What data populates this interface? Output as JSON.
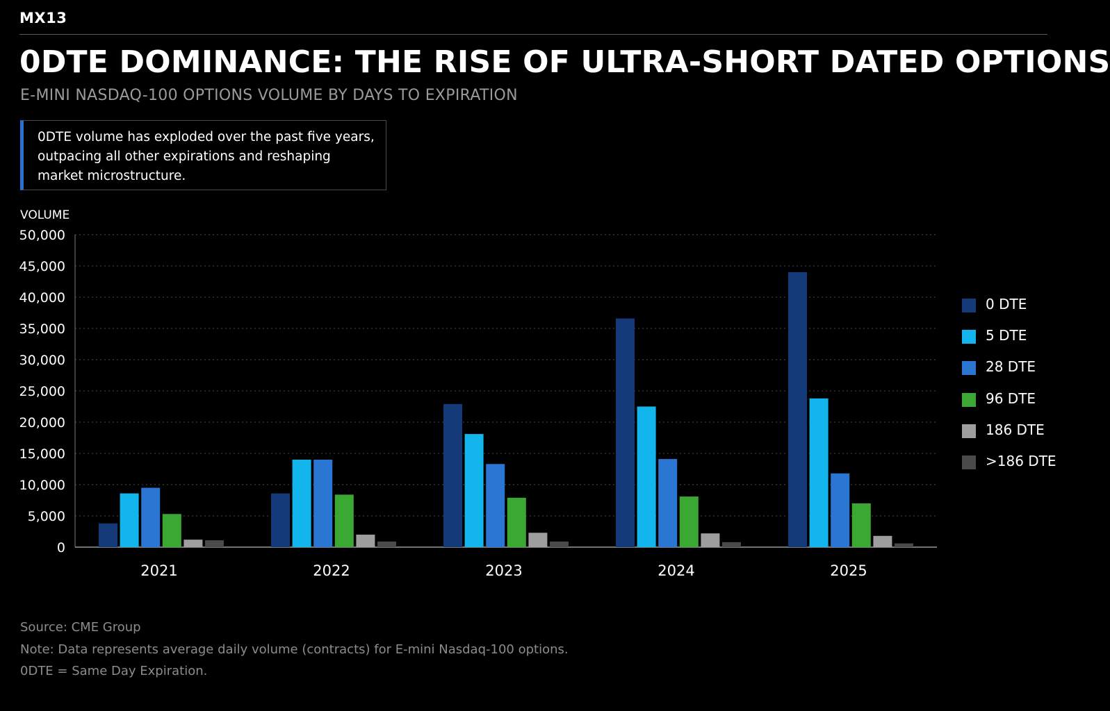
{
  "header": {
    "brand": "MX13",
    "title": "0DTE DOMINANCE: THE RISE OF ULTRA-SHORT DATED OPTIONS",
    "subtitle": "E-MINI NASDAQ-100 OPTIONS VOLUME BY DAYS TO EXPIRATION"
  },
  "callout": {
    "text": "0DTE volume has exploded over the past five years, outpacing all other expirations and reshaping market microstructure.",
    "accent_color": "#2a6fd6"
  },
  "footer": {
    "source": "Source: CME Group",
    "note": "Note: Data represents average daily volume (contracts) for E-mini Nasdaq-100 options.",
    "definition": "0DTE = Same Day Expiration."
  },
  "chart_data": {
    "type": "bar",
    "title": "0DTE DOMINANCE: THE RISE OF ULTRA-SHORT DATED OPTIONS",
    "subtitle": "E-MINI NASDAQ-100 OPTIONS VOLUME BY DAYS TO EXPIRATION",
    "ylabel": "VOLUME",
    "xlabel": "",
    "ylim": [
      0,
      50000
    ],
    "yticks": [
      0,
      5000,
      10000,
      15000,
      20000,
      25000,
      30000,
      35000,
      40000,
      45000,
      50000
    ],
    "ytick_labels": [
      "0",
      "5,000",
      "10,000",
      "15,000",
      "20,000",
      "25,000",
      "30,000",
      "35,000",
      "40,000",
      "45,000",
      "50,000"
    ],
    "grid": true,
    "legend_position": "right",
    "categories": [
      "2021",
      "2022",
      "2023",
      "2024",
      "2025"
    ],
    "series": [
      {
        "name": "0 DTE",
        "color": "#143a7a",
        "values": [
          3800,
          8600,
          22900,
          36600,
          44000
        ]
      },
      {
        "name": "5 DTE",
        "color": "#12b6ec",
        "values": [
          8600,
          14000,
          18100,
          22500,
          23800
        ]
      },
      {
        "name": "28 DTE",
        "color": "#2b76d2",
        "values": [
          9500,
          14000,
          13300,
          14100,
          11800
        ]
      },
      {
        "name": "96 DTE",
        "color": "#3aa832",
        "values": [
          5300,
          8400,
          7900,
          8100,
          7000
        ]
      },
      {
        "name": "186 DTE",
        "color": "#9e9e9e",
        "values": [
          1200,
          2000,
          2300,
          2200,
          1800
        ]
      },
      {
        "name": ">186 DTE",
        "color": "#4a4a4a",
        "values": [
          1100,
          900,
          900,
          800,
          600
        ]
      }
    ]
  }
}
